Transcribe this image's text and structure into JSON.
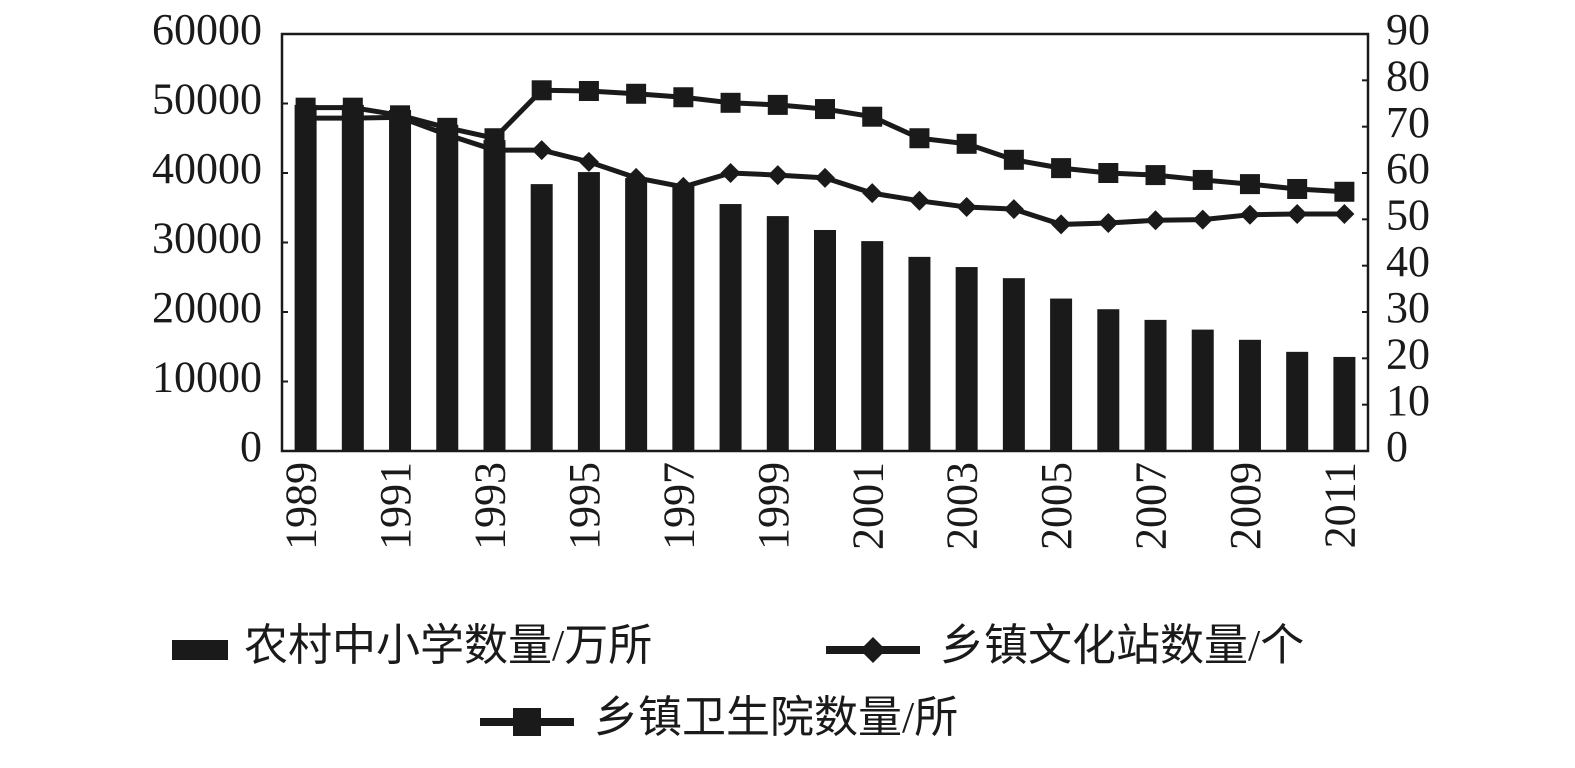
{
  "chart_data": {
    "type": "bar",
    "categories": [
      "1989",
      null,
      "1991",
      null,
      "1993",
      null,
      "1995",
      null,
      "1997",
      null,
      "1999",
      null,
      "2001",
      null,
      "2003",
      null,
      "2005",
      null,
      "2007",
      null,
      "2009",
      null,
      "2011"
    ],
    "series": [
      {
        "name": "农村中小学数量/万所",
        "type": "bar",
        "axis": "y2",
        "color": "#1a1a1a",
        "values": [
          74.7,
          74.7,
          73.6,
          70.4,
          67.1,
          57.6,
          60.2,
          58.9,
          57.4,
          53.3,
          50.7,
          47.7,
          45.3,
          41.9,
          39.7,
          37.3,
          32.9,
          30.6,
          28.3,
          26.2,
          24.0,
          21.4,
          20.3
        ]
      },
      {
        "name": "乡镇文化站数量/个",
        "type": "line",
        "marker": "diamond",
        "color": "#1a1a1a",
        "values": [
          47900,
          47900,
          48000,
          45500,
          43300,
          43300,
          41600,
          39300,
          38000,
          40000,
          39700,
          39300,
          37100,
          36000,
          35100,
          34800,
          32600,
          32800,
          33200,
          33300,
          34000,
          34100,
          34100
        ]
      },
      {
        "name": "乡镇卫生院数量/所",
        "type": "line",
        "marker": "square",
        "color": "#1a1a1a",
        "values": [
          49400,
          49400,
          48300,
          46500,
          45000,
          51900,
          51800,
          51400,
          50900,
          50100,
          49800,
          49200,
          48100,
          45000,
          44200,
          41900,
          40700,
          40000,
          39700,
          39000,
          38400,
          37700,
          37300
        ]
      }
    ],
    "ylim": [
      0,
      60000
    ],
    "yticks": [
      0,
      10000,
      20000,
      30000,
      40000,
      50000,
      60000
    ],
    "y2lim": [
      0,
      90
    ],
    "y2ticks": [
      0,
      10,
      20,
      30,
      40,
      50,
      60,
      70,
      80,
      90
    ]
  }
}
